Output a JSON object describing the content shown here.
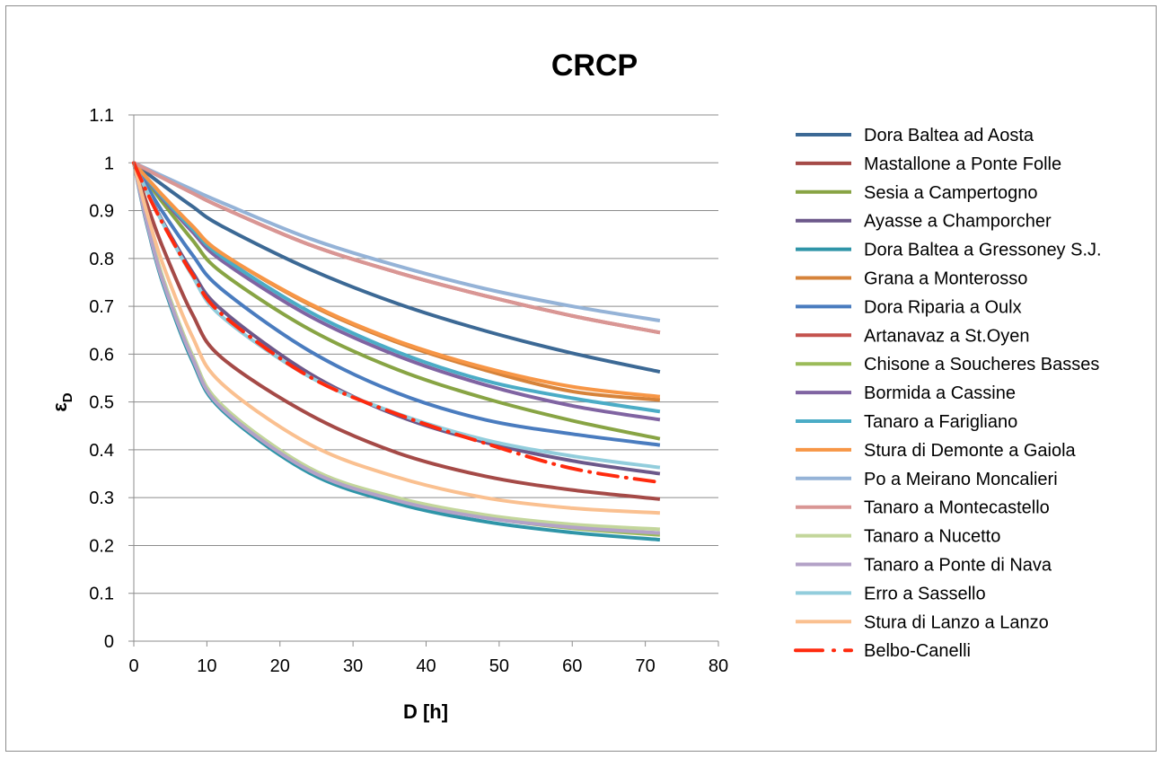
{
  "chart_data": {
    "type": "line",
    "title": "CRCP",
    "xlabel": "D [h]",
    "ylabel_main": "ε",
    "ylabel_sub": "D",
    "xlim": [
      0,
      80
    ],
    "ylim": [
      0,
      1.1
    ],
    "x_ticks": [
      "0",
      "10",
      "20",
      "30",
      "40",
      "50",
      "60",
      "70",
      "80"
    ],
    "y_ticks": [
      "0",
      "0.1",
      "0.2",
      "0.3",
      "0.4",
      "0.5",
      "0.6",
      "0.7",
      "0.8",
      "0.9",
      "1",
      "1.1"
    ],
    "grid": "horizontal",
    "legend_position": "right",
    "x": [
      0,
      1,
      2,
      4,
      8,
      12,
      24,
      36,
      48,
      60,
      72
    ],
    "series": [
      {
        "name": "Dora Baltea ad Aosta",
        "color": "#3C6995",
        "values": [
          1,
          0.988,
          0.976,
          0.953,
          0.909,
          0.868,
          0.778,
          0.706,
          0.649,
          0.602,
          0.563
        ]
      },
      {
        "name": "Mastallone a Ponte Folle",
        "color": "#A54A47",
        "values": [
          1,
          0.951,
          0.905,
          0.822,
          0.684,
          0.593,
          0.474,
          0.394,
          0.345,
          0.316,
          0.297
        ]
      },
      {
        "name": "Sesia a Campertogno",
        "color": "#88A444",
        "values": [
          1,
          0.978,
          0.957,
          0.916,
          0.839,
          0.771,
          0.652,
          0.568,
          0.508,
          0.461,
          0.423
        ]
      },
      {
        "name": "Ayasse a Champorcher",
        "color": "#6C588A",
        "values": [
          1,
          0.967,
          0.936,
          0.876,
          0.772,
          0.693,
          0.56,
          0.472,
          0.416,
          0.377,
          0.35
        ]
      },
      {
        "name": "Dora Baltea a Gressoney S.J.",
        "color": "#2F95A8",
        "values": [
          1,
          0.925,
          0.858,
          0.747,
          0.586,
          0.484,
          0.352,
          0.288,
          0.25,
          0.227,
          0.212
        ]
      },
      {
        "name": "Grana a Monterosso",
        "color": "#D6833A",
        "values": [
          1,
          0.982,
          0.965,
          0.931,
          0.868,
          0.811,
          0.704,
          0.625,
          0.567,
          0.522,
          0.504
        ]
      },
      {
        "name": "Dora Riparia a Oulx",
        "color": "#4A7CBF",
        "values": [
          1,
          0.972,
          0.946,
          0.896,
          0.808,
          0.736,
          0.607,
          0.519,
          0.463,
          0.433,
          0.41
        ]
      },
      {
        "name": "Artanavaz a St.Oyen",
        "color": "#C4524D",
        "values": [
          1,
          0.992,
          0.984,
          0.968,
          0.937,
          0.907,
          0.829,
          0.771,
          0.722,
          0.68,
          0.645
        ]
      },
      {
        "name": "Chisone a Soucheres Basses",
        "color": "#9BBB59",
        "values": [
          1,
          0.93,
          0.866,
          0.758,
          0.598,
          0.494,
          0.362,
          0.297,
          0.259,
          0.236,
          0.222
        ]
      },
      {
        "name": "Bormida a Cassine",
        "color": "#8064A2",
        "values": [
          1,
          0.98,
          0.961,
          0.924,
          0.856,
          0.796,
          0.68,
          0.597,
          0.536,
          0.492,
          0.463
        ]
      },
      {
        "name": "Tanaro a Farigliano",
        "color": "#4BACC6",
        "values": [
          1,
          0.981,
          0.963,
          0.927,
          0.862,
          0.804,
          0.689,
          0.605,
          0.545,
          0.508,
          0.48
        ]
      },
      {
        "name": "Stura di Demonte a Gaiola",
        "color": "#F79646",
        "values": [
          1,
          0.982,
          0.965,
          0.931,
          0.868,
          0.811,
          0.706,
          0.628,
          0.572,
          0.532,
          0.511
        ]
      },
      {
        "name": "Po a Meirano Moncalieri",
        "color": "#95B3D7",
        "values": [
          1,
          0.993,
          0.986,
          0.972,
          0.944,
          0.917,
          0.842,
          0.785,
          0.737,
          0.7,
          0.67
        ]
      },
      {
        "name": "Tanaro a Montecastello",
        "color": "#D99694",
        "values": [
          1,
          0.992,
          0.984,
          0.968,
          0.937,
          0.907,
          0.829,
          0.771,
          0.722,
          0.68,
          0.645
        ]
      },
      {
        "name": "Tanaro a Nucetto",
        "color": "#C3D69B",
        "values": [
          1,
          0.93,
          0.866,
          0.758,
          0.598,
          0.494,
          0.362,
          0.3,
          0.264,
          0.244,
          0.234
        ]
      },
      {
        "name": "Tanaro a Ponte di Nava",
        "color": "#B3A2C7",
        "values": [
          1,
          0.928,
          0.862,
          0.752,
          0.592,
          0.488,
          0.357,
          0.294,
          0.258,
          0.238,
          0.226
        ]
      },
      {
        "name": "Erro a Sassello",
        "color": "#92CDDC",
        "values": [
          1,
          0.966,
          0.934,
          0.873,
          0.764,
          0.679,
          0.553,
          0.476,
          0.421,
          0.387,
          0.363
        ]
      },
      {
        "name": "Stura di Lanzo a Lanzo",
        "color": "#FAC090",
        "values": [
          1,
          0.94,
          0.885,
          0.787,
          0.637,
          0.539,
          0.412,
          0.343,
          0.3,
          0.278,
          0.268
        ]
      },
      {
        "name": "Belbo-Canelli",
        "color": "#FF2A0E",
        "dashed": true,
        "values": [
          1,
          0.965,
          0.932,
          0.872,
          0.767,
          0.684,
          0.553,
          0.475,
          0.414,
          0.361,
          0.332
        ]
      }
    ]
  }
}
